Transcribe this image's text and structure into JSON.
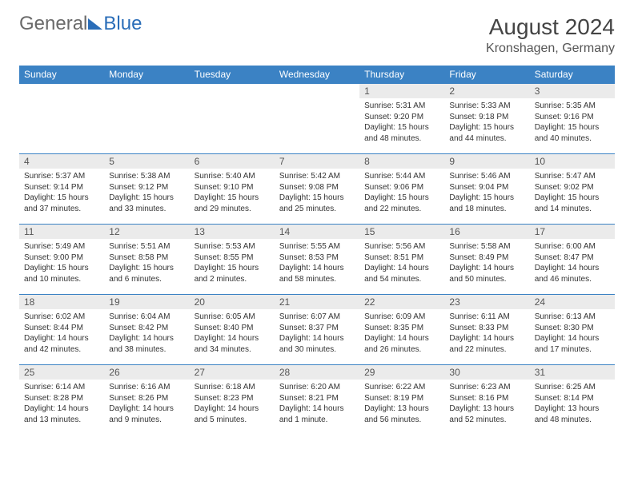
{
  "logo": {
    "part1": "General",
    "part2": "Blue"
  },
  "title": "August 2024",
  "location": "Kronshagen, Germany",
  "colors": {
    "header_bg": "#3b82c4",
    "header_text": "#ffffff",
    "daynum_bg": "#ebebeb",
    "border": "#3b82c4",
    "logo_accent": "#2a6db8"
  },
  "day_headers": [
    "Sunday",
    "Monday",
    "Tuesday",
    "Wednesday",
    "Thursday",
    "Friday",
    "Saturday"
  ],
  "weeks": [
    [
      {
        "n": "",
        "sunrise": "",
        "sunset": "",
        "daylight": ""
      },
      {
        "n": "",
        "sunrise": "",
        "sunset": "",
        "daylight": ""
      },
      {
        "n": "",
        "sunrise": "",
        "sunset": "",
        "daylight": ""
      },
      {
        "n": "",
        "sunrise": "",
        "sunset": "",
        "daylight": ""
      },
      {
        "n": "1",
        "sunrise": "Sunrise: 5:31 AM",
        "sunset": "Sunset: 9:20 PM",
        "daylight": "Daylight: 15 hours and 48 minutes."
      },
      {
        "n": "2",
        "sunrise": "Sunrise: 5:33 AM",
        "sunset": "Sunset: 9:18 PM",
        "daylight": "Daylight: 15 hours and 44 minutes."
      },
      {
        "n": "3",
        "sunrise": "Sunrise: 5:35 AM",
        "sunset": "Sunset: 9:16 PM",
        "daylight": "Daylight: 15 hours and 40 minutes."
      }
    ],
    [
      {
        "n": "4",
        "sunrise": "Sunrise: 5:37 AM",
        "sunset": "Sunset: 9:14 PM",
        "daylight": "Daylight: 15 hours and 37 minutes."
      },
      {
        "n": "5",
        "sunrise": "Sunrise: 5:38 AM",
        "sunset": "Sunset: 9:12 PM",
        "daylight": "Daylight: 15 hours and 33 minutes."
      },
      {
        "n": "6",
        "sunrise": "Sunrise: 5:40 AM",
        "sunset": "Sunset: 9:10 PM",
        "daylight": "Daylight: 15 hours and 29 minutes."
      },
      {
        "n": "7",
        "sunrise": "Sunrise: 5:42 AM",
        "sunset": "Sunset: 9:08 PM",
        "daylight": "Daylight: 15 hours and 25 minutes."
      },
      {
        "n": "8",
        "sunrise": "Sunrise: 5:44 AM",
        "sunset": "Sunset: 9:06 PM",
        "daylight": "Daylight: 15 hours and 22 minutes."
      },
      {
        "n": "9",
        "sunrise": "Sunrise: 5:46 AM",
        "sunset": "Sunset: 9:04 PM",
        "daylight": "Daylight: 15 hours and 18 minutes."
      },
      {
        "n": "10",
        "sunrise": "Sunrise: 5:47 AM",
        "sunset": "Sunset: 9:02 PM",
        "daylight": "Daylight: 15 hours and 14 minutes."
      }
    ],
    [
      {
        "n": "11",
        "sunrise": "Sunrise: 5:49 AM",
        "sunset": "Sunset: 9:00 PM",
        "daylight": "Daylight: 15 hours and 10 minutes."
      },
      {
        "n": "12",
        "sunrise": "Sunrise: 5:51 AM",
        "sunset": "Sunset: 8:58 PM",
        "daylight": "Daylight: 15 hours and 6 minutes."
      },
      {
        "n": "13",
        "sunrise": "Sunrise: 5:53 AM",
        "sunset": "Sunset: 8:55 PM",
        "daylight": "Daylight: 15 hours and 2 minutes."
      },
      {
        "n": "14",
        "sunrise": "Sunrise: 5:55 AM",
        "sunset": "Sunset: 8:53 PM",
        "daylight": "Daylight: 14 hours and 58 minutes."
      },
      {
        "n": "15",
        "sunrise": "Sunrise: 5:56 AM",
        "sunset": "Sunset: 8:51 PM",
        "daylight": "Daylight: 14 hours and 54 minutes."
      },
      {
        "n": "16",
        "sunrise": "Sunrise: 5:58 AM",
        "sunset": "Sunset: 8:49 PM",
        "daylight": "Daylight: 14 hours and 50 minutes."
      },
      {
        "n": "17",
        "sunrise": "Sunrise: 6:00 AM",
        "sunset": "Sunset: 8:47 PM",
        "daylight": "Daylight: 14 hours and 46 minutes."
      }
    ],
    [
      {
        "n": "18",
        "sunrise": "Sunrise: 6:02 AM",
        "sunset": "Sunset: 8:44 PM",
        "daylight": "Daylight: 14 hours and 42 minutes."
      },
      {
        "n": "19",
        "sunrise": "Sunrise: 6:04 AM",
        "sunset": "Sunset: 8:42 PM",
        "daylight": "Daylight: 14 hours and 38 minutes."
      },
      {
        "n": "20",
        "sunrise": "Sunrise: 6:05 AM",
        "sunset": "Sunset: 8:40 PM",
        "daylight": "Daylight: 14 hours and 34 minutes."
      },
      {
        "n": "21",
        "sunrise": "Sunrise: 6:07 AM",
        "sunset": "Sunset: 8:37 PM",
        "daylight": "Daylight: 14 hours and 30 minutes."
      },
      {
        "n": "22",
        "sunrise": "Sunrise: 6:09 AM",
        "sunset": "Sunset: 8:35 PM",
        "daylight": "Daylight: 14 hours and 26 minutes."
      },
      {
        "n": "23",
        "sunrise": "Sunrise: 6:11 AM",
        "sunset": "Sunset: 8:33 PM",
        "daylight": "Daylight: 14 hours and 22 minutes."
      },
      {
        "n": "24",
        "sunrise": "Sunrise: 6:13 AM",
        "sunset": "Sunset: 8:30 PM",
        "daylight": "Daylight: 14 hours and 17 minutes."
      }
    ],
    [
      {
        "n": "25",
        "sunrise": "Sunrise: 6:14 AM",
        "sunset": "Sunset: 8:28 PM",
        "daylight": "Daylight: 14 hours and 13 minutes."
      },
      {
        "n": "26",
        "sunrise": "Sunrise: 6:16 AM",
        "sunset": "Sunset: 8:26 PM",
        "daylight": "Daylight: 14 hours and 9 minutes."
      },
      {
        "n": "27",
        "sunrise": "Sunrise: 6:18 AM",
        "sunset": "Sunset: 8:23 PM",
        "daylight": "Daylight: 14 hours and 5 minutes."
      },
      {
        "n": "28",
        "sunrise": "Sunrise: 6:20 AM",
        "sunset": "Sunset: 8:21 PM",
        "daylight": "Daylight: 14 hours and 1 minute."
      },
      {
        "n": "29",
        "sunrise": "Sunrise: 6:22 AM",
        "sunset": "Sunset: 8:19 PM",
        "daylight": "Daylight: 13 hours and 56 minutes."
      },
      {
        "n": "30",
        "sunrise": "Sunrise: 6:23 AM",
        "sunset": "Sunset: 8:16 PM",
        "daylight": "Daylight: 13 hours and 52 minutes."
      },
      {
        "n": "31",
        "sunrise": "Sunrise: 6:25 AM",
        "sunset": "Sunset: 8:14 PM",
        "daylight": "Daylight: 13 hours and 48 minutes."
      }
    ]
  ]
}
